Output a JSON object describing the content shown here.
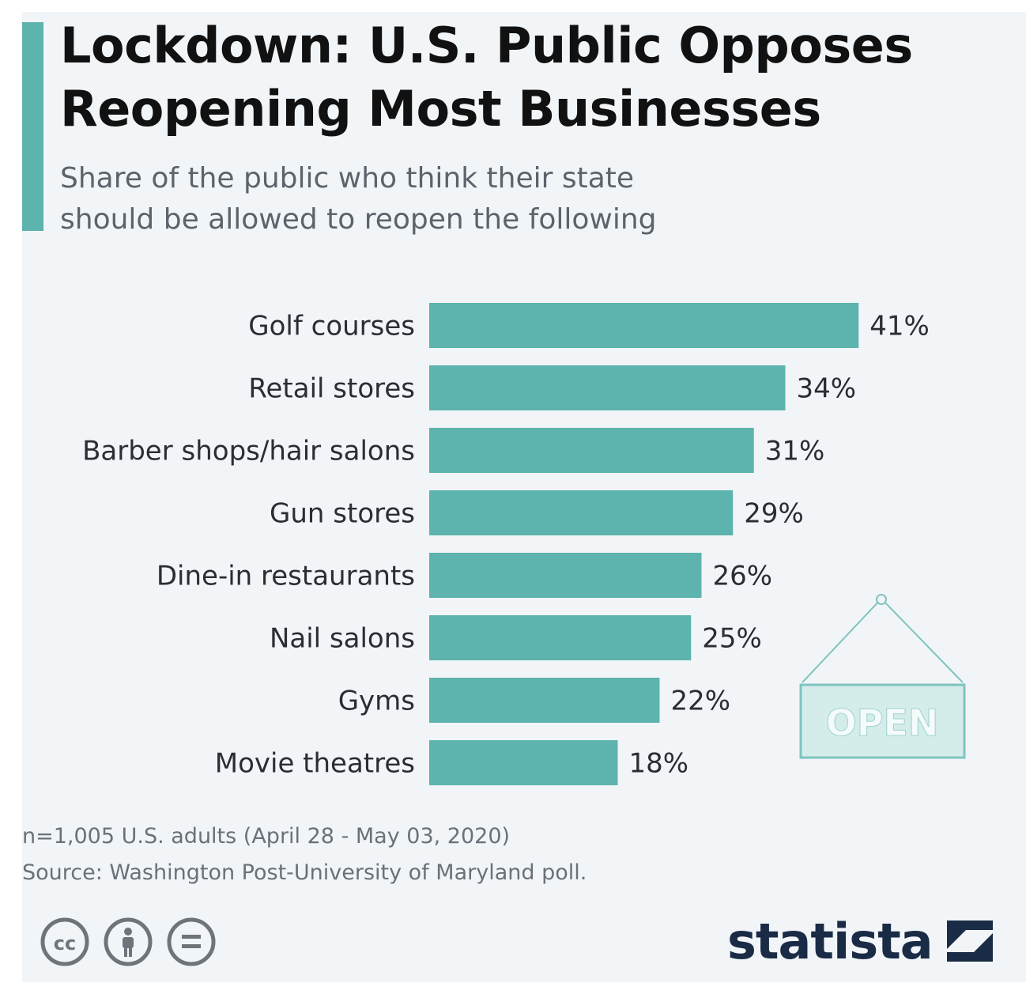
{
  "title_line1": "Lockdown: U.S. Public Opposes",
  "title_line2": "Reopening Most Businesses",
  "subtitle_line1": "Share of the public who think their state",
  "subtitle_line2": "should be allowed to reopen the following",
  "sign_text": "OPEN",
  "note": "n=1,005 U.S. adults (April 28 - May 03, 2020)",
  "source": "Source: Washington Post-University of Maryland poll.",
  "brand": "statista",
  "colors": {
    "bar": "#5db3ad",
    "accent": "#5db3ad",
    "brand": "#1a2b45"
  },
  "chart_data": {
    "type": "bar",
    "orientation": "horizontal",
    "categories": [
      "Golf courses",
      "Retail stores",
      "Barber shops/hair salons",
      "Gun stores",
      "Dine-in restaurants",
      "Nail salons",
      "Gyms",
      "Movie theatres"
    ],
    "values": [
      41,
      34,
      31,
      29,
      26,
      25,
      22,
      18
    ],
    "value_labels": [
      "41%",
      "34%",
      "31%",
      "29%",
      "26%",
      "25%",
      "22%",
      "18%"
    ],
    "unit": "%",
    "grid": false,
    "legend": "none"
  }
}
